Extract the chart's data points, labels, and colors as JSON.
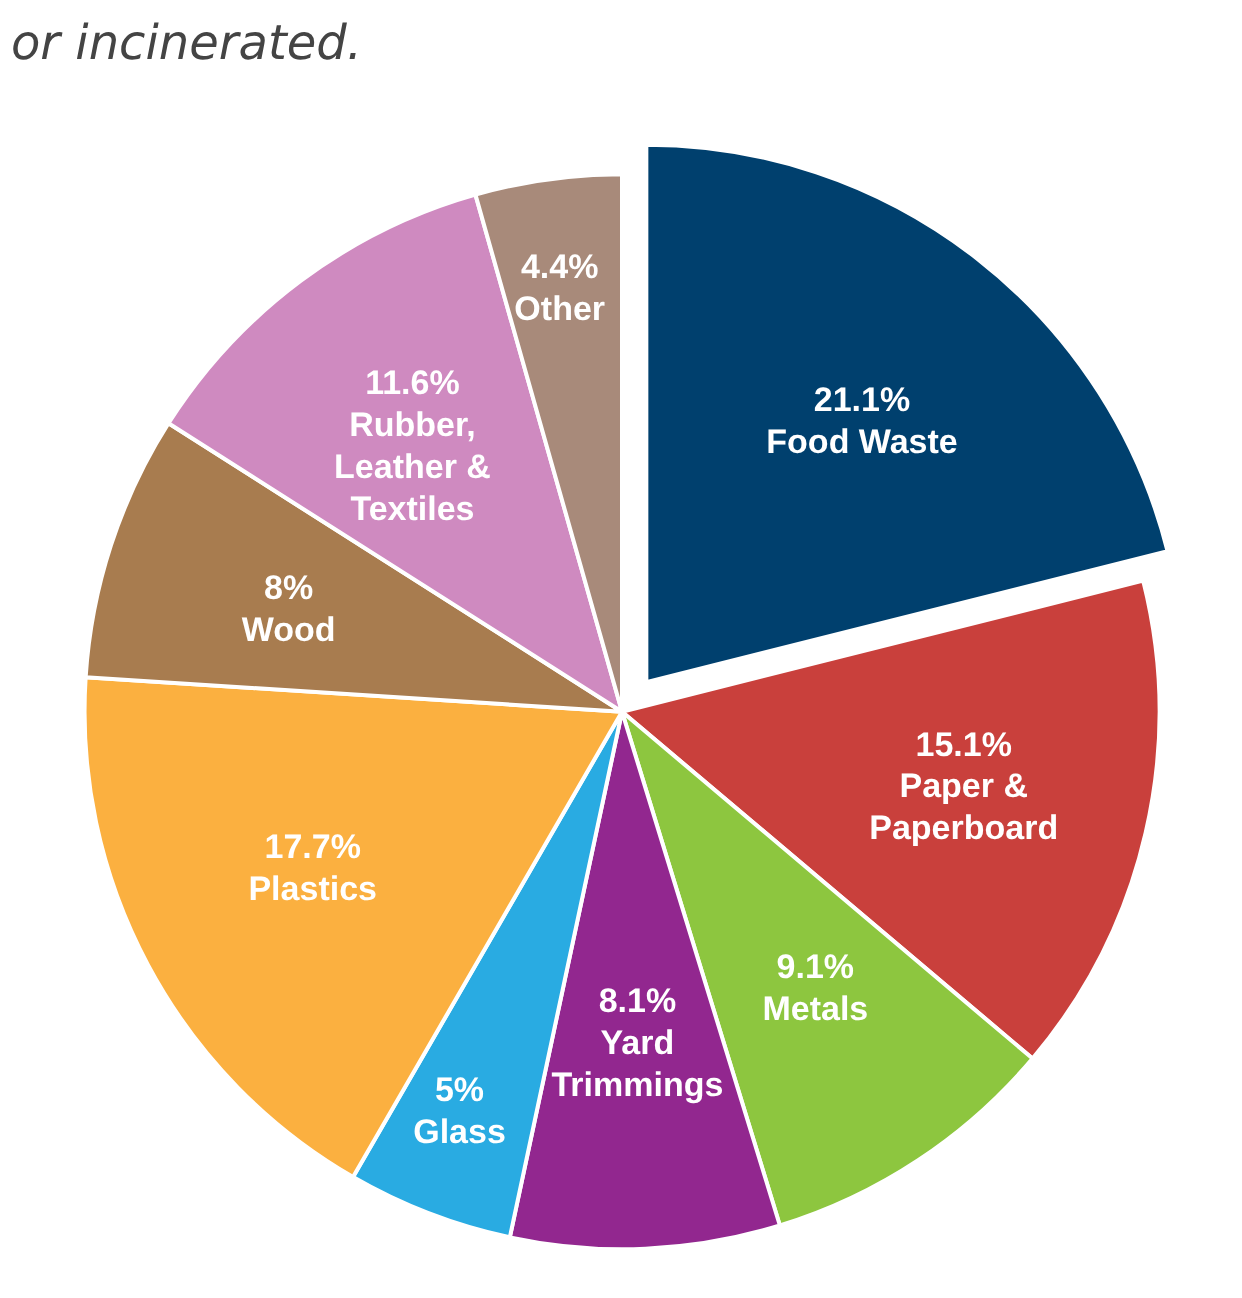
{
  "chart_data": {
    "type": "pie",
    "title": "or incinerated.",
    "categories": [
      "Food Waste",
      "Paper & Paperboard",
      "Metals",
      "Yard Trimmings",
      "Glass",
      "Plastics",
      "Wood",
      "Rubber, Leather & Textiles",
      "Other"
    ],
    "values": [
      21.1,
      15.1,
      9.1,
      8.1,
      5,
      17.7,
      8,
      11.6,
      4.4
    ],
    "colors": [
      "#00406e",
      "#c9403c",
      "#8dc63f",
      "#92278f",
      "#29abe2",
      "#fbb040",
      "#a87c4f",
      "#cf8ac0",
      "#a88a7a"
    ],
    "value_labels": [
      "21.1%",
      "15.1%",
      "9.1%",
      "8.1%",
      "5%",
      "17.7%",
      "8%",
      "11.6%",
      "4.4%"
    ]
  }
}
